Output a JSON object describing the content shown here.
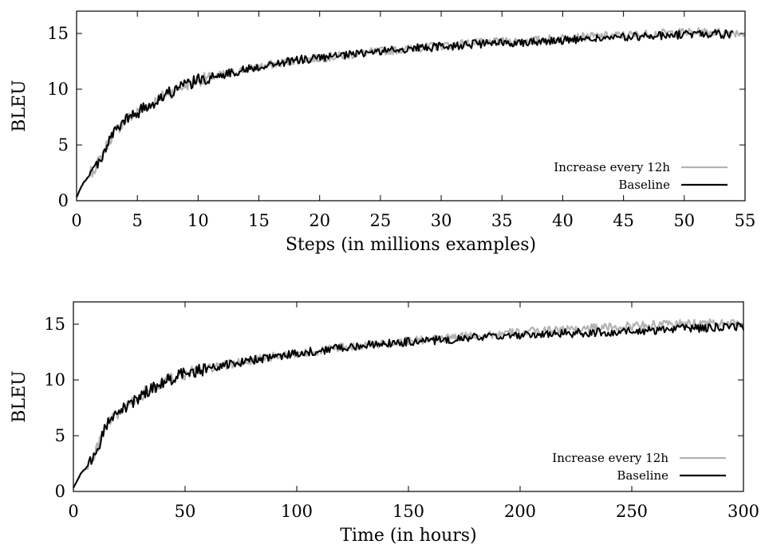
{
  "chart_data": [
    {
      "type": "line",
      "xlabel": "Steps (in millions examples)",
      "ylabel": "BLEU",
      "xlim": [
        0,
        55
      ],
      "ylim": [
        0,
        17
      ],
      "xticks": [
        0,
        5,
        10,
        15,
        20,
        25,
        30,
        35,
        40,
        45,
        50,
        55
      ],
      "yticks": [
        0,
        5,
        10,
        15
      ],
      "legend_position": "bottom-right",
      "grid": false,
      "series": [
        {
          "name": "Increase every 12h",
          "color": "#b3b3b3",
          "x": [
            0,
            0.5,
            1,
            1.5,
            2,
            2.5,
            3,
            4,
            5,
            6,
            7,
            8,
            9,
            10,
            12,
            14,
            16,
            18,
            20,
            22,
            24,
            26,
            28,
            30,
            32,
            34,
            36,
            38,
            40,
            42,
            44,
            46,
            48,
            50,
            52,
            54,
            55
          ],
          "y": [
            0.3,
            1.5,
            2.2,
            3.0,
            3.8,
            5.0,
            6.0,
            7.2,
            7.9,
            8.6,
            9.3,
            9.9,
            10.4,
            10.8,
            11.3,
            11.8,
            12.2,
            12.6,
            12.8,
            13.0,
            13.3,
            13.5,
            13.7,
            13.9,
            14.1,
            14.2,
            14.3,
            14.4,
            14.6,
            14.7,
            14.8,
            14.9,
            15.0,
            15.1,
            15.1,
            15.1,
            15.0
          ]
        },
        {
          "name": "Baseline",
          "color": "#000000",
          "x": [
            0,
            0.5,
            1,
            1.5,
            2,
            2.5,
            3,
            4,
            5,
            6,
            7,
            8,
            9,
            10,
            12,
            14,
            16,
            18,
            20,
            22,
            24,
            26,
            28,
            30,
            32,
            34,
            36,
            38,
            40,
            42,
            44,
            46,
            48,
            50,
            52,
            54
          ],
          "y": [
            0.3,
            1.5,
            2.2,
            3.0,
            3.8,
            5.0,
            6.0,
            7.2,
            7.9,
            8.6,
            9.3,
            9.9,
            10.4,
            10.8,
            11.3,
            11.8,
            12.2,
            12.6,
            12.8,
            13.0,
            13.3,
            13.5,
            13.7,
            13.8,
            14.0,
            14.1,
            14.2,
            14.3,
            14.4,
            14.5,
            14.6,
            14.7,
            14.8,
            14.9,
            15.0,
            14.9
          ]
        }
      ]
    },
    {
      "type": "line",
      "xlabel": "Time (in hours)",
      "ylabel": "BLEU",
      "xlim": [
        0,
        300
      ],
      "ylim": [
        0,
        17
      ],
      "xticks": [
        0,
        50,
        100,
        150,
        200,
        250,
        300
      ],
      "yticks": [
        0,
        5,
        10,
        15
      ],
      "legend_position": "bottom-right",
      "grid": false,
      "series": [
        {
          "name": "Increase every 12h",
          "color": "#b3b3b3",
          "x": [
            0,
            3,
            6,
            9,
            12,
            15,
            18,
            22,
            27,
            33,
            40,
            47,
            55,
            65,
            75,
            90,
            105,
            120,
            135,
            150,
            165,
            180,
            195,
            210,
            225,
            240,
            255,
            270,
            285,
            300
          ],
          "y": [
            0.3,
            1.5,
            2.2,
            3.0,
            4.5,
            6.0,
            6.5,
            7.4,
            8.1,
            9.0,
            9.8,
            10.4,
            10.8,
            11.2,
            11.6,
            12.1,
            12.5,
            12.9,
            13.2,
            13.5,
            13.7,
            14.0,
            14.2,
            14.4,
            14.6,
            14.7,
            14.9,
            15.0,
            15.1,
            15.0
          ]
        },
        {
          "name": "Baseline",
          "color": "#000000",
          "x": [
            0,
            3,
            6,
            9,
            12,
            15,
            18,
            22,
            27,
            33,
            40,
            47,
            55,
            65,
            75,
            90,
            105,
            120,
            135,
            150,
            165,
            180,
            195,
            210,
            225,
            240,
            255,
            270,
            285,
            300
          ],
          "y": [
            0.3,
            1.5,
            2.2,
            3.0,
            4.5,
            6.0,
            6.5,
            7.4,
            8.1,
            9.0,
            9.8,
            10.4,
            10.8,
            11.2,
            11.6,
            12.1,
            12.5,
            12.9,
            13.2,
            13.4,
            13.6,
            13.8,
            13.9,
            14.1,
            14.2,
            14.3,
            14.4,
            14.6,
            14.7,
            14.8
          ]
        }
      ]
    }
  ]
}
